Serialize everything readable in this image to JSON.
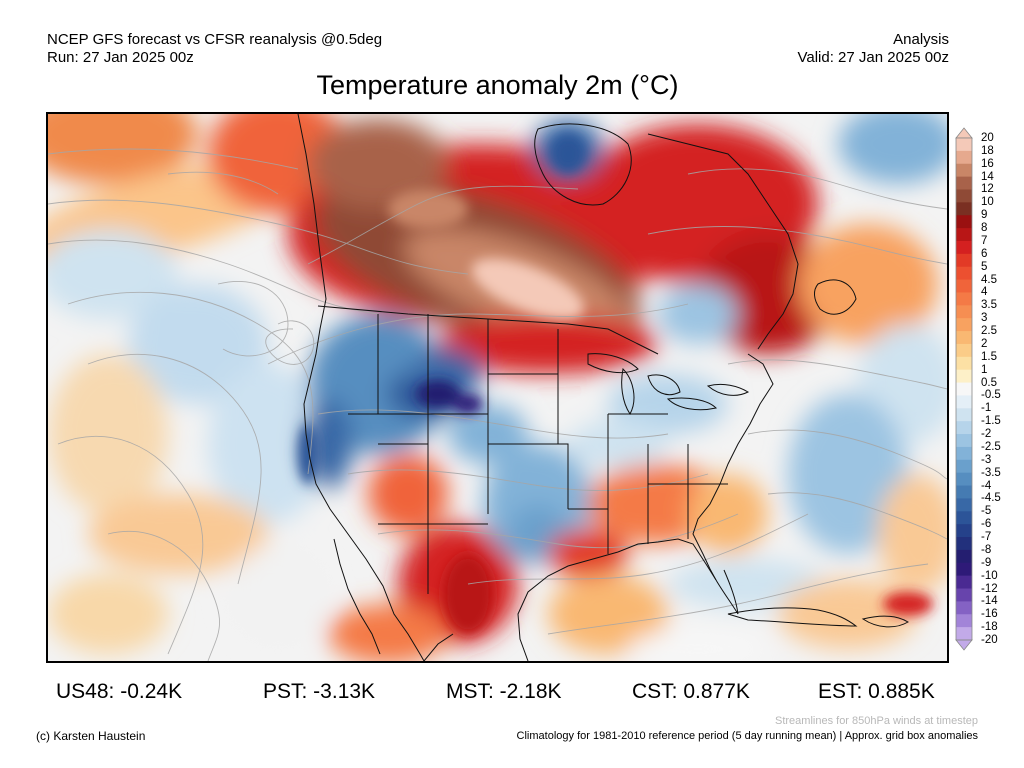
{
  "header": {
    "left_line1": "NCEP GFS forecast vs CFSR reanalysis @0.5deg",
    "left_line2": "Run: 27 Jan 2025 00z",
    "right_line1": "Analysis",
    "right_line2": "Valid: 27 Jan 2025 00z",
    "title": "Temperature anomaly 2m (°C)"
  },
  "colorbar": {
    "labels": [
      "20",
      "18",
      "16",
      "14",
      "12",
      "10",
      "9",
      "8",
      "7",
      "6",
      "5",
      "4.5",
      "4",
      "3.5",
      "3",
      "2.5",
      "2",
      "1.5",
      "1",
      "0.5",
      "-0.5",
      "-1",
      "-1.5",
      "-2",
      "-2.5",
      "-3",
      "-3.5",
      "-4",
      "-4.5",
      "-5",
      "-6",
      "-7",
      "-8",
      "-9",
      "-10",
      "-12",
      "-14",
      "-16",
      "-18",
      "-20"
    ],
    "colors": [
      "#f4c9b8",
      "#e6a98e",
      "#c98667",
      "#a8624a",
      "#8f4a36",
      "#7a2f22",
      "#9a1010",
      "#b81616",
      "#d42020",
      "#e23a26",
      "#ec5030",
      "#f0643a",
      "#f47a46",
      "#f68e52",
      "#f8a260",
      "#f9b872",
      "#fbcc88",
      "#fce0a4",
      "#fdf0c8",
      "#f7f7f7",
      "#e4eff7",
      "#cfe3f0",
      "#b6d4ea",
      "#9cc4e2",
      "#82b2d8",
      "#6aa0cc",
      "#568ec0",
      "#457bb2",
      "#3868a6",
      "#2c5498",
      "#25418a",
      "#22307c",
      "#241e70",
      "#2e1a78",
      "#4a2a92",
      "#6744ac",
      "#8462c4",
      "#a284d8",
      "#c2aae8"
    ]
  },
  "stats": [
    {
      "label": "US48: -0.24K"
    },
    {
      "label": "PST: -3.13K"
    },
    {
      "label": "MST: -2.18K"
    },
    {
      "label": "CST: 0.877K"
    },
    {
      "label": "EST: 0.885K"
    }
  ],
  "footer": {
    "credit": "(c) Karsten Haustein",
    "streamlines_note": "Streamlines for 850hPa winds at timestep",
    "climatology_note": "Climatology for 1981-2010 reference period (5 day running mean) | Approx. grid box anomalies"
  },
  "map": {
    "ocean_base_color": "#f3f3f3",
    "land_outline_color": "#111111"
  }
}
